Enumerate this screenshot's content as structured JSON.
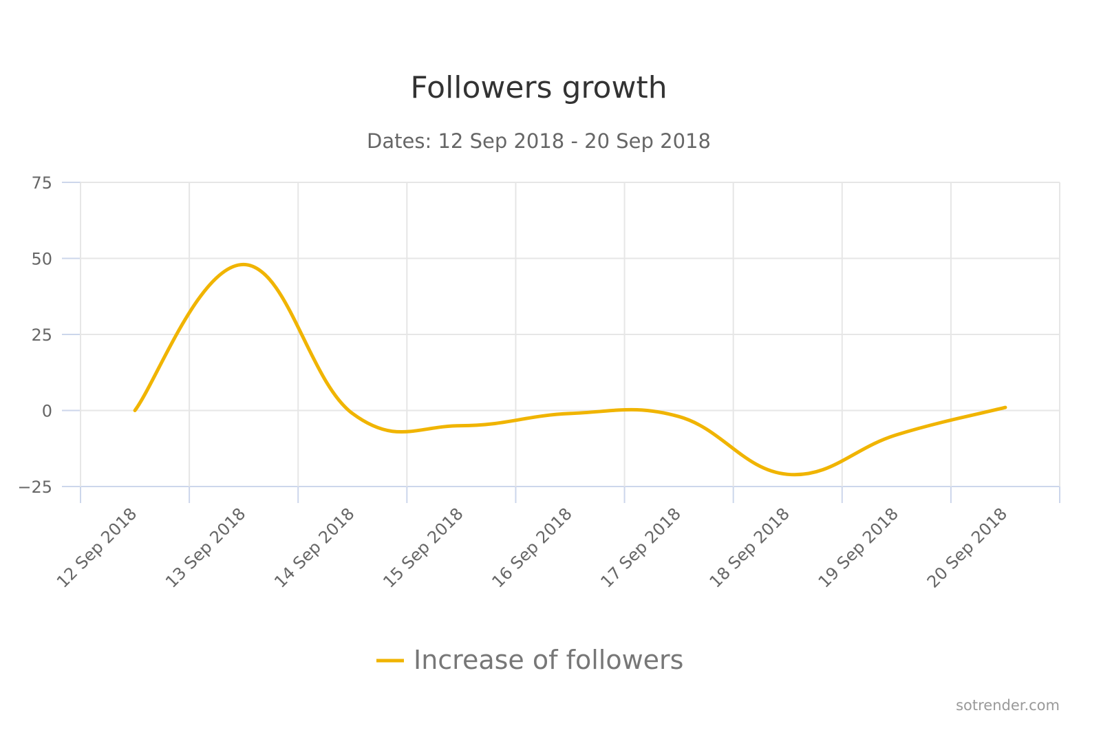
{
  "chart_data": {
    "type": "line",
    "title": "Followers growth",
    "subtitle": "Dates: 12 Sep 2018 - 20 Sep 2018",
    "xlabel": "",
    "ylabel": "",
    "categories": [
      "12 Sep 2018",
      "13 Sep 2018",
      "14 Sep 2018",
      "15 Sep 2018",
      "16 Sep 2018",
      "17 Sep 2018",
      "18 Sep 2018",
      "19 Sep 2018",
      "20 Sep 2018"
    ],
    "series": [
      {
        "name": "Increase of followers",
        "color": "#f0b400",
        "values": [
          0,
          48,
          -1,
          -5,
          -1,
          -2,
          -21,
          -8,
          1
        ]
      }
    ],
    "ylim": [
      -25,
      75
    ],
    "yticks": [
      "75",
      "50",
      "25",
      "0",
      "−25"
    ],
    "ytick_values": [
      75,
      50,
      25,
      0,
      -25
    ],
    "grid": true,
    "legend": "bottom-center"
  },
  "credits": "sotrender.com"
}
